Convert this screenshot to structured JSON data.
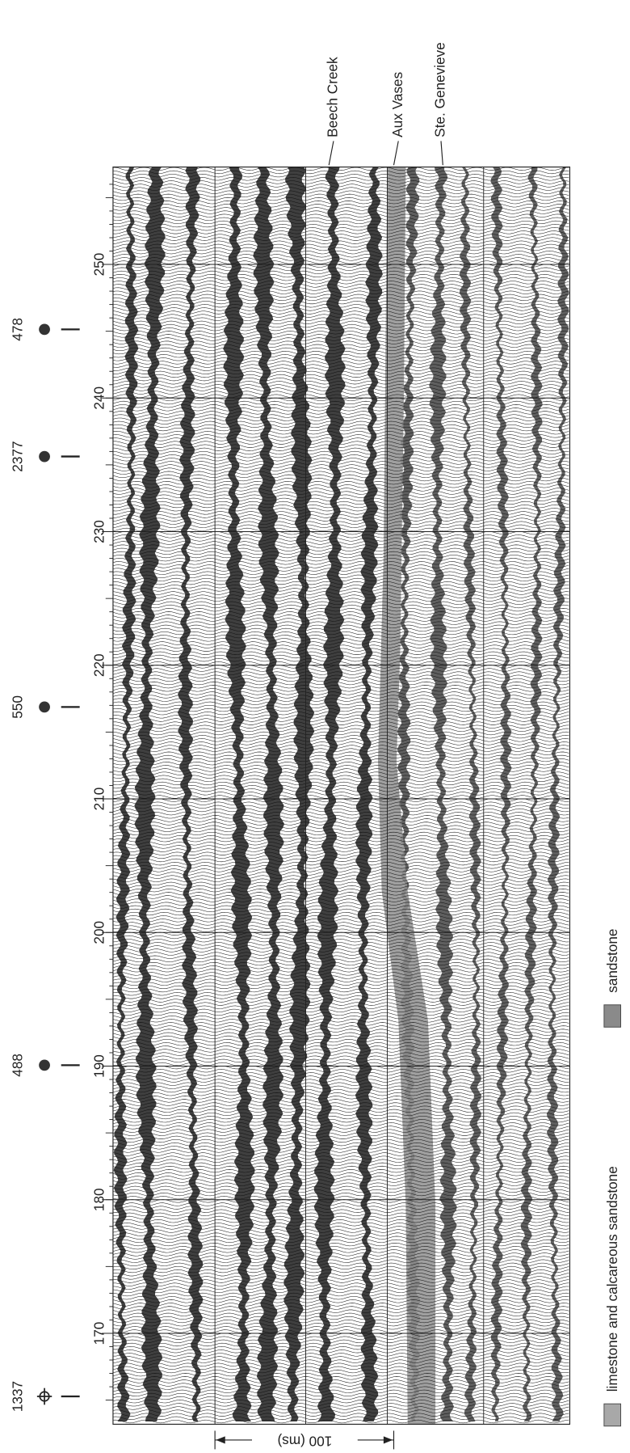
{
  "trace_axis": {
    "ticks": [
      170,
      180,
      190,
      200,
      210,
      220,
      230,
      240,
      250
    ]
  },
  "wells": [
    {
      "label": "1337"
    },
    {
      "label": "488"
    },
    {
      "label": "550"
    },
    {
      "label": "2377"
    },
    {
      "label": "478"
    }
  ],
  "horizons": [
    {
      "label": "Beech Creek"
    },
    {
      "label": "Aux Vases"
    },
    {
      "label": "Ste. Genevieve"
    }
  ],
  "scale_bar": "100 (ms)",
  "legend": [
    {
      "label": "limestone and calcareous sandstone",
      "color": "#a8a8a8"
    },
    {
      "label": "sandstone",
      "color": "#8a8a8a"
    }
  ]
}
